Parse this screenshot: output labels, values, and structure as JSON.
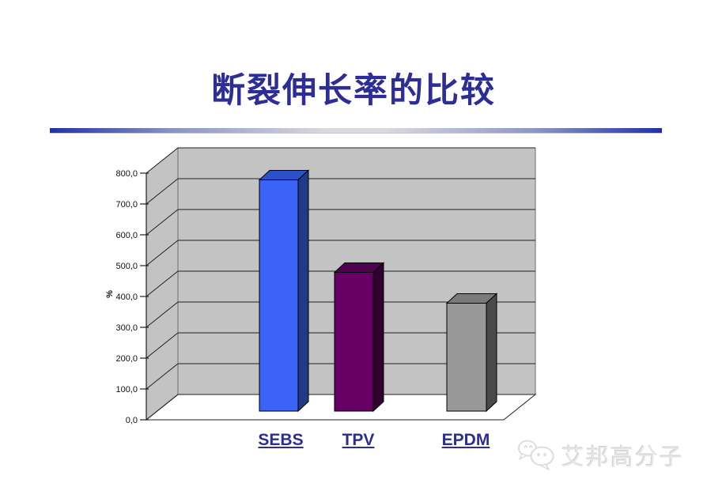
{
  "title": {
    "text": "断裂伸长率的比较",
    "color": "#2d2d96"
  },
  "divider": {
    "edge_color": "#2031a6",
    "mid_color": "#d9d9de"
  },
  "chart_data": {
    "type": "bar",
    "style": "3d-column",
    "title": "",
    "categories": [
      "SEBS",
      "TPV",
      "EPDM"
    ],
    "values": [
      750,
      450,
      350
    ],
    "xlabel": "",
    "ylabel": "%",
    "ylim": [
      0,
      800
    ],
    "ytick_step": 100,
    "ytick_labels": [
      "0,0",
      "100,0",
      "200,0",
      "300,0",
      "400,0",
      "500,0",
      "600,0",
      "700,0",
      "800,0"
    ],
    "grid": true,
    "legend": "none",
    "wall_color": "#c3c3c3",
    "floor_color": "#ffffff",
    "gridline_color": "#202020",
    "bar_colors": [
      {
        "name": "SEBS",
        "front": "#3b63f5",
        "side": "#203a85",
        "top": "#2b50c8"
      },
      {
        "name": "TPV",
        "front": "#660066",
        "side": "#300030",
        "top": "#500150"
      },
      {
        "name": "EPDM",
        "front": "#999999",
        "side": "#4a4a4a",
        "top": "#7a7a7a"
      }
    ],
    "category_label_color": "#2d2d96"
  },
  "watermark": {
    "icon": "wechat-bubbles-icon",
    "text": "艾邦高分子",
    "color": "#e6e6e6"
  }
}
